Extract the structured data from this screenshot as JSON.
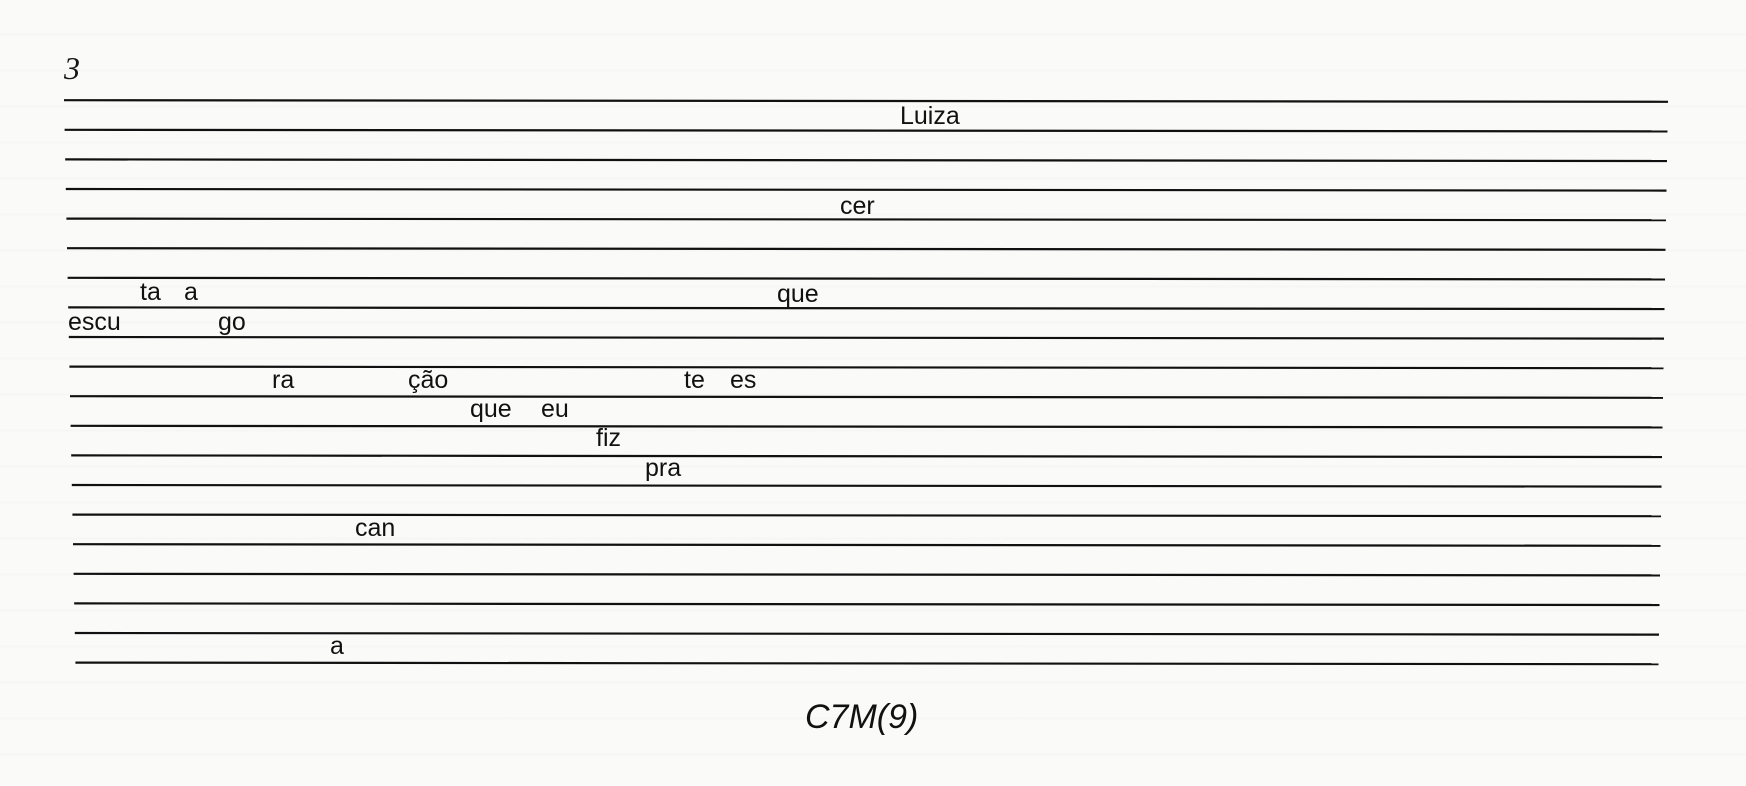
{
  "measure": {
    "number": "3"
  },
  "lyrics": {
    "luiza": "Luiza",
    "cer": "cer",
    "ta": "ta",
    "a1": "a",
    "que1": "que",
    "escu": "escu",
    "go": "go",
    "ra": "ra",
    "cao": "ção",
    "te": "te",
    "es": "es",
    "que2": "que",
    "eu": "eu",
    "fiz": "fiz",
    "pra": "pra",
    "can": "can",
    "a2": "a"
  },
  "chord": {
    "symbol": "C7M(9)"
  }
}
